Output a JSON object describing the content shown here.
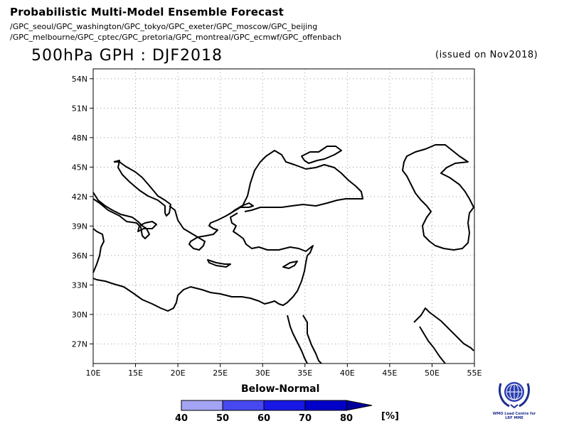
{
  "header": {
    "title": "Probabilistic Multi-Model Ensemble Forecast",
    "centres_line1": "/GPC_seoul/GPC_washington/GPC_tokyo/GPC_exeter/GPC_moscow/GPC_beijing",
    "centres_line2": "/GPC_melbourne/GPC_cptec/GPC_pretoria/GPC_montreal/GPC_ecmwf/GPC_offenbach",
    "map_title": "500hPa GPH : DJF2018",
    "issued": "(issued on Nov2018)"
  },
  "map": {
    "lon_range": [
      10,
      55
    ],
    "lat_range": [
      25,
      55
    ],
    "lon_ticks": [
      "10E",
      "15E",
      "20E",
      "25E",
      "30E",
      "35E",
      "40E",
      "45E",
      "50E",
      "55E"
    ],
    "lat_ticks": [
      "54N",
      "51N",
      "48N",
      "45N",
      "42N",
      "39N",
      "36N",
      "33N",
      "30N",
      "27N"
    ],
    "grid": true,
    "coastline_color": "#000000"
  },
  "legend": {
    "title": "Below-Normal",
    "unit": "[%]",
    "ticks": [
      "40",
      "50",
      "60",
      "70",
      "80"
    ],
    "colors": [
      "#a4a4f4",
      "#4848f0",
      "#1818e6",
      "#0000c8",
      "#0000a0"
    ]
  },
  "logo": {
    "line1": "WMO Lead Centre for",
    "line2": "LRF MME"
  }
}
